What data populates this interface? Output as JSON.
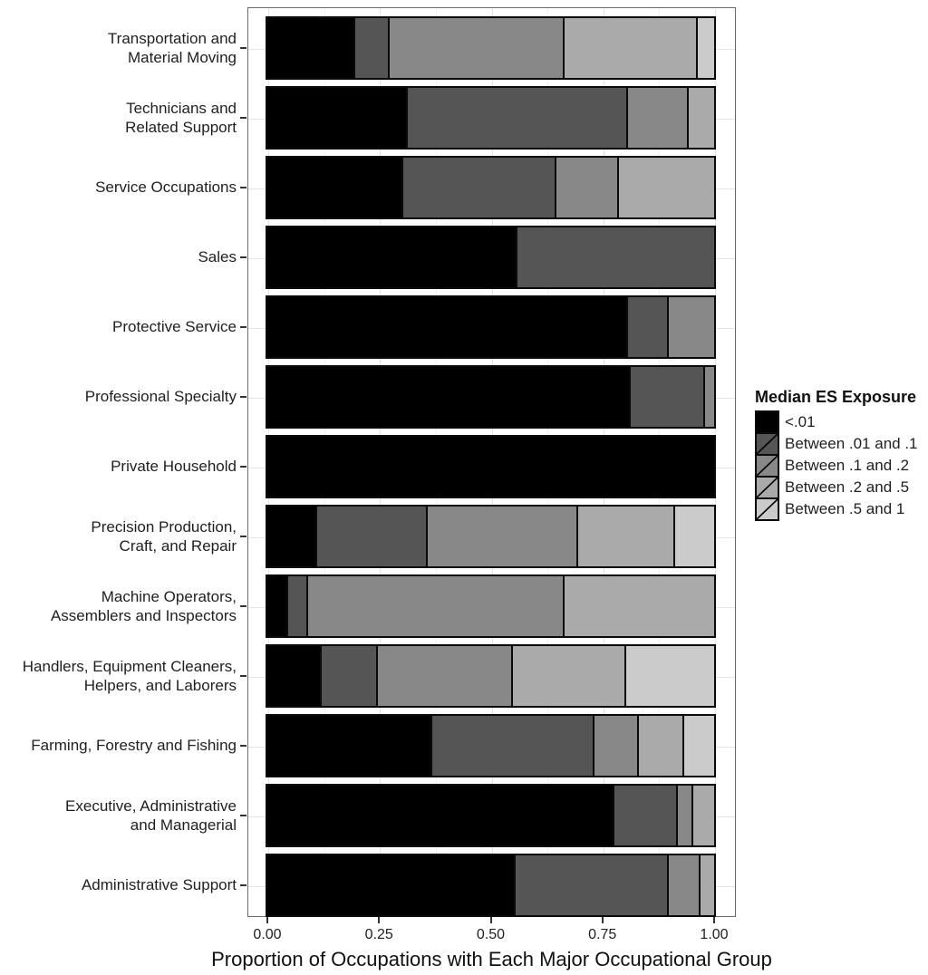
{
  "chart_data": {
    "type": "bar",
    "orientation": "horizontal",
    "stacked": true,
    "title": "",
    "xlabel": "Proportion of Occupations with Each Major Occupational Group",
    "ylabel": "",
    "xlim": [
      0,
      1
    ],
    "x_ticks": [
      {
        "value": 0.0,
        "label": "0.00"
      },
      {
        "value": 0.25,
        "label": "0.25"
      },
      {
        "value": 0.5,
        "label": "0.50"
      },
      {
        "value": 0.75,
        "label": "0.75"
      },
      {
        "value": 1.0,
        "label": "1.00"
      }
    ],
    "grid": true,
    "legend_position": "right",
    "legend_title": "Median ES Exposure",
    "categories": [
      "Transportation and\nMaterial Moving",
      "Technicians and\nRelated Support",
      "Service Occupations",
      "Sales",
      "Protective Service",
      "Professional Specialty",
      "Private Household",
      "Precision Production,\nCraft, and Repair",
      "Machine Operators,\nAssemblers and Inspectors",
      "Handlers, Equipment Cleaners,\nHelpers, and Laborers",
      "Farming, Forestry and Fishing",
      "Executive, Administrative\nand Managerial",
      "Administrative Support"
    ],
    "series": [
      {
        "name": "<.01",
        "color": "#000000",
        "values": [
          0.2,
          0.315,
          0.305,
          0.56,
          0.805,
          0.81,
          1.0,
          0.115,
          0.05,
          0.125,
          0.37,
          0.775,
          0.555
        ]
      },
      {
        "name": "Between .01 and .1",
        "color": "#555555",
        "values": [
          0.075,
          0.49,
          0.34,
          0.44,
          0.09,
          0.165,
          0,
          0.245,
          0.045,
          0.125,
          0.36,
          0.14,
          0.34
        ]
      },
      {
        "name": "Between .1 and .2",
        "color": "#888888",
        "values": [
          0.39,
          0.135,
          0.14,
          0,
          0.105,
          0.025,
          0,
          0.335,
          0.57,
          0.3,
          0.1,
          0.035,
          0.07
        ]
      },
      {
        "name": "Between .2 and .5",
        "color": "#aaaaaa",
        "values": [
          0.295,
          0.06,
          0.215,
          0,
          0,
          0,
          0,
          0.215,
          0.335,
          0.25,
          0.1,
          0.05,
          0.035
        ]
      },
      {
        "name": "Between .5 and 1",
        "color": "#cbcbcb",
        "values": [
          0.04,
          0,
          0,
          0,
          0,
          0,
          0,
          0.09,
          0,
          0.2,
          0.07,
          0,
          0
        ]
      }
    ]
  }
}
